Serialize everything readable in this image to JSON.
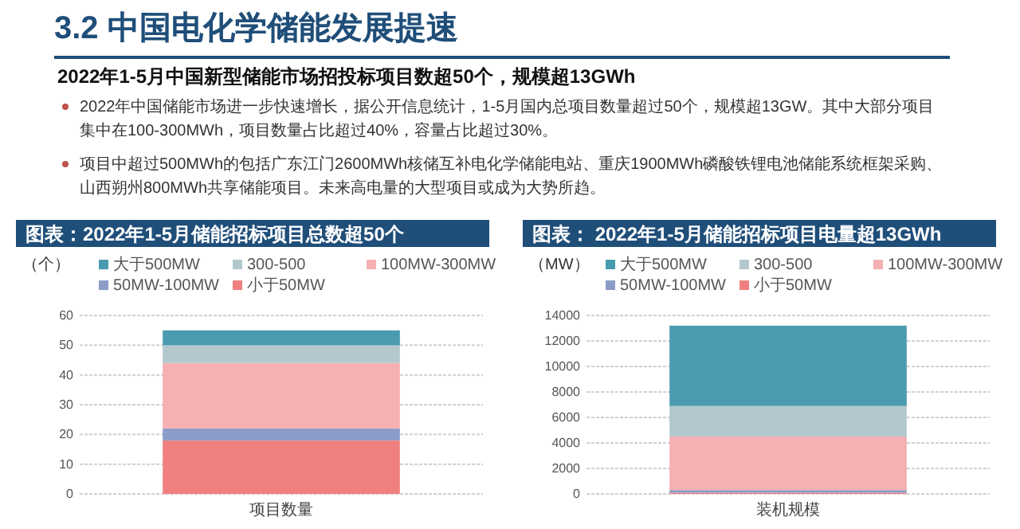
{
  "chart_data": [
    {
      "type": "other",
      "title": "3.2 中国电化学储能发展提速",
      "subtitle": "2022年1-5月中国新型储能市场招投标项目数超50个，规模超13GWh",
      "annotations": [
        "2022年中国储能市场进一步快速增长，据公开信息统计，1-5月国内总项目数量超过50个，规模超13GW。其中大部分项目集中在100-300MWh，项目数量占比超过40%，容量占比超过30%。",
        "项目中超过500MWh的包括广东江门2600MWh核储互补电化学储能电站、重庆1900MWh磷酸铁锂电池储能系统框架采购、山西朔州800MWh共享储能项目。未来高电量的大型项目或成为大势所趋。"
      ]
    },
    {
      "type": "bar",
      "title": "图表：2022年1-5月储能招标项目总数超50个",
      "ylabel": "（个）",
      "categories": [
        "项目数量"
      ],
      "stacked": true,
      "series": [
        {
          "name": "小于50MW",
          "color": "#f08080",
          "values": [
            18
          ]
        },
        {
          "name": "50MW-100MW",
          "color": "#8c9cc8",
          "values": [
            4
          ]
        },
        {
          "name": "100MW-300MW",
          "color": "#f5b0b3",
          "values": [
            22
          ]
        },
        {
          "name": "300-500",
          "color": "#b3c8cc",
          "values": [
            6
          ]
        },
        {
          "name": "大于500MW",
          "color": "#4a9bb0",
          "values": [
            5
          ]
        }
      ],
      "ylim": [
        0,
        60
      ],
      "yticks": [
        0,
        10,
        20,
        30,
        40,
        50,
        60
      ],
      "grid": "y",
      "legend": "top"
    },
    {
      "type": "bar",
      "title": "图表： 2022年1-5月储能招标项目电量超13GWh",
      "ylabel": "（MW）",
      "categories": [
        "装机规模"
      ],
      "stacked": true,
      "series": [
        {
          "name": "小于50MW",
          "color": "#f08080",
          "values": [
            100
          ]
        },
        {
          "name": "50MW-100MW",
          "color": "#8c9cc8",
          "values": [
            200
          ]
        },
        {
          "name": "100MW-300MW",
          "color": "#f5b0b3",
          "values": [
            4200
          ]
        },
        {
          "name": "300-500",
          "color": "#b3c8cc",
          "values": [
            2400
          ]
        },
        {
          "name": "大于500MW",
          "color": "#4a9bb0",
          "values": [
            6300
          ]
        }
      ],
      "ylim": [
        0,
        14000
      ],
      "yticks": [
        0,
        2000,
        4000,
        6000,
        8000,
        10000,
        12000,
        14000
      ],
      "grid": "y",
      "legend": "top"
    }
  ]
}
